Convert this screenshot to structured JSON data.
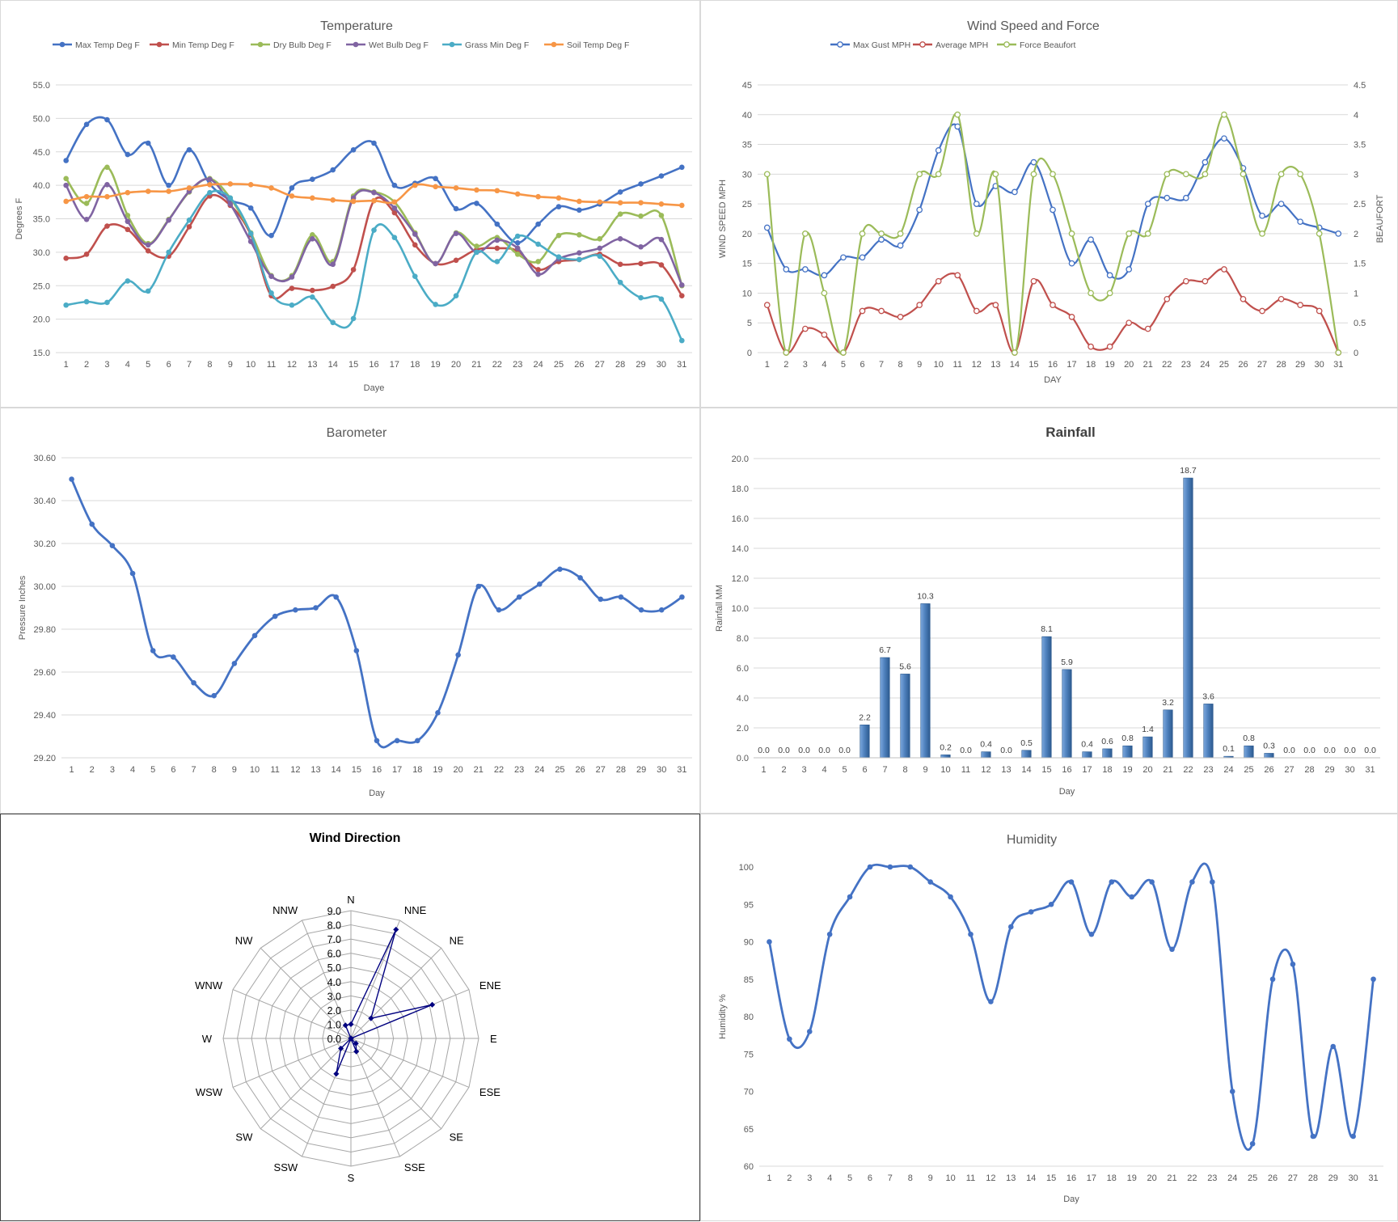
{
  "chart_data": [
    {
      "id": "temperature",
      "type": "line",
      "title": "Temperature",
      "xlabel": "Daye",
      "ylabel": "Degrees F",
      "ylim": [
        15.0,
        55.0
      ],
      "yticks": [
        "15.0",
        "20.0",
        "25.0",
        "30.0",
        "35.0",
        "40.0",
        "45.0",
        "50.0",
        "55.0"
      ],
      "x": [
        1,
        2,
        3,
        4,
        5,
        6,
        7,
        8,
        9,
        10,
        11,
        12,
        13,
        14,
        15,
        16,
        17,
        18,
        19,
        20,
        21,
        22,
        23,
        24,
        25,
        26,
        27,
        28,
        29,
        30,
        31
      ],
      "legend_position": "top",
      "grid": "horizontal",
      "series": [
        {
          "name": "Max Temp Deg F",
          "color": "#4472c4",
          "values": [
            43.7,
            49.1,
            49.8,
            44.6,
            46.3,
            40.0,
            45.3,
            40.2,
            37.8,
            36.6,
            32.5,
            39.6,
            40.9,
            42.3,
            45.3,
            46.3,
            40.0,
            40.3,
            41.0,
            36.5,
            37.3,
            34.2,
            31.4,
            34.2,
            36.8,
            36.3,
            37.2,
            39.0,
            40.2,
            41.4,
            42.7
          ]
        },
        {
          "name": "Min Temp Deg F",
          "color": "#c0504d",
          "values": [
            29.1,
            29.7,
            33.9,
            33.4,
            30.2,
            29.4,
            33.8,
            38.4,
            37.0,
            32.6,
            23.5,
            24.6,
            24.3,
            24.9,
            27.4,
            37.7,
            35.9,
            31.1,
            28.3,
            28.8,
            30.4,
            30.6,
            30.2,
            27.4,
            28.6,
            28.9,
            29.7,
            28.2,
            28.3,
            28.1,
            23.5
          ]
        },
        {
          "name": "Dry Bulb Deg F",
          "color": "#9bbb59",
          "values": [
            41.0,
            37.3,
            42.7,
            35.5,
            31.3,
            34.9,
            39.0,
            41.0,
            38.1,
            32.9,
            26.5,
            26.5,
            32.6,
            28.6,
            38.4,
            39.0,
            37.5,
            32.9,
            28.3,
            32.9,
            30.9,
            32.2,
            29.7,
            28.6,
            32.5,
            32.6,
            32.0,
            35.7,
            35.4,
            35.5,
            25.0
          ]
        },
        {
          "name": "Wet Bulb Deg F",
          "color": "#8064a2",
          "values": [
            40.0,
            34.9,
            40.1,
            34.6,
            31.1,
            34.8,
            39.1,
            40.9,
            37.2,
            31.6,
            26.4,
            26.3,
            32.0,
            28.2,
            38.1,
            38.9,
            36.6,
            32.7,
            28.3,
            32.8,
            30.0,
            31.8,
            30.6,
            26.7,
            29.0,
            29.9,
            30.6,
            32.0,
            30.8,
            31.9,
            25.1
          ]
        },
        {
          "name": "Grass Min Deg F",
          "color": "#4bacc6",
          "values": [
            22.1,
            22.6,
            22.5,
            25.7,
            24.2,
            30.0,
            34.8,
            38.9,
            38.1,
            32.8,
            23.9,
            22.1,
            23.3,
            19.5,
            20.1,
            33.3,
            32.2,
            26.4,
            22.2,
            23.5,
            30.0,
            28.6,
            32.4,
            31.2,
            29.3,
            28.9,
            29.4,
            25.5,
            23.2,
            23.0,
            16.8
          ]
        },
        {
          "name": "Soil Temp Deg F",
          "color": "#f79646",
          "values": [
            37.6,
            38.3,
            38.3,
            38.9,
            39.1,
            39.1,
            39.6,
            40.1,
            40.2,
            40.1,
            39.6,
            38.4,
            38.1,
            37.8,
            37.6,
            37.7,
            37.5,
            40.0,
            39.8,
            39.6,
            39.3,
            39.2,
            38.7,
            38.3,
            38.1,
            37.6,
            37.5,
            37.4,
            37.4,
            37.2,
            37.0
          ]
        }
      ]
    },
    {
      "id": "wind",
      "type": "line",
      "title": "Wind Speed and Force",
      "xlabel": "DAY",
      "ylabel": "WIND SPEED MPH",
      "ylabel_right": "BEAUFORT",
      "ylim": [
        0,
        45
      ],
      "ylim_right": [
        0,
        4.5
      ],
      "yticks": [
        "0",
        "5",
        "10",
        "15",
        "20",
        "25",
        "30",
        "35",
        "40",
        "45"
      ],
      "yticks_right": [
        "0",
        "0.5",
        "1",
        "1.5",
        "2",
        "2.5",
        "3",
        "3.5",
        "4",
        "4.5"
      ],
      "x": [
        1,
        2,
        3,
        4,
        5,
        6,
        7,
        8,
        9,
        10,
        11,
        12,
        13,
        14,
        15,
        16,
        17,
        18,
        19,
        20,
        21,
        22,
        23,
        24,
        25,
        26,
        27,
        28,
        29,
        30,
        31
      ],
      "legend_position": "top",
      "grid": "horizontal",
      "series": [
        {
          "name": "Max Gust MPH",
          "color": "#4472c4",
          "axis": "left",
          "values": [
            21,
            14,
            14,
            13,
            16,
            16,
            19,
            18,
            24,
            34,
            38,
            25,
            28,
            27,
            32,
            24,
            15,
            19,
            13,
            14,
            25,
            26,
            26,
            32,
            36,
            31,
            23,
            25,
            22,
            21,
            20
          ]
        },
        {
          "name": "Average MPH",
          "color": "#c0504d",
          "axis": "left",
          "values": [
            8,
            0,
            4,
            3,
            0,
            7,
            7,
            6,
            8,
            12,
            13,
            7,
            8,
            0,
            12,
            8,
            6,
            1,
            1,
            5,
            4,
            9,
            12,
            12,
            14,
            9,
            7,
            9,
            8,
            7,
            0
          ]
        },
        {
          "name": "Force Beaufort",
          "color": "#9bbb59",
          "axis": "right",
          "values": [
            3,
            0,
            2,
            1,
            0,
            2,
            2,
            2,
            3,
            3,
            4,
            2,
            3,
            0,
            3,
            3,
            2,
            1,
            1,
            2,
            2,
            3,
            3,
            3,
            4,
            3,
            2,
            3,
            3,
            2,
            0
          ]
        }
      ]
    },
    {
      "id": "barometer",
      "type": "line",
      "title": "Barometer",
      "xlabel": "Day",
      "ylabel": "Pressure Inches",
      "ylim": [
        29.2,
        30.6
      ],
      "yticks": [
        "29.20",
        "29.40",
        "29.60",
        "29.80",
        "30.00",
        "30.20",
        "30.40",
        "30.60"
      ],
      "x": [
        1,
        2,
        3,
        4,
        5,
        6,
        7,
        8,
        9,
        10,
        11,
        12,
        13,
        14,
        15,
        16,
        17,
        18,
        19,
        20,
        21,
        22,
        23,
        24,
        25,
        26,
        27,
        28,
        29,
        30,
        31
      ],
      "grid": "horizontal",
      "series": [
        {
          "name": "",
          "color": "#4472c4",
          "values": [
            30.5,
            30.29,
            30.19,
            30.06,
            29.7,
            29.67,
            29.55,
            29.49,
            29.64,
            29.77,
            29.86,
            29.89,
            29.9,
            29.95,
            29.7,
            29.28,
            29.28,
            29.28,
            29.41,
            29.68,
            30.0,
            29.89,
            29.95,
            30.01,
            30.08,
            30.04,
            29.94,
            29.95,
            29.89,
            29.89,
            29.95
          ]
        }
      ]
    },
    {
      "id": "rainfall",
      "type": "bar",
      "title": "Rainfall",
      "xlabel": "Day",
      "ylabel": "Rainfall MM",
      "ylim": [
        0,
        20
      ],
      "yticks": [
        "0.0",
        "2.0",
        "4.0",
        "6.0",
        "8.0",
        "10.0",
        "12.0",
        "14.0",
        "16.0",
        "18.0",
        "20.0"
      ],
      "categories": [
        "1",
        "2",
        "3",
        "4",
        "5",
        "6",
        "7",
        "8",
        "9",
        "10",
        "11",
        "12",
        "13",
        "14",
        "15",
        "16",
        "17",
        "18",
        "19",
        "20",
        "21",
        "22",
        "23",
        "24",
        "25",
        "26",
        "27",
        "28",
        "29",
        "30",
        "31"
      ],
      "values": [
        0.0,
        0.0,
        0.0,
        0.0,
        0.0,
        2.2,
        6.7,
        5.6,
        10.3,
        0.2,
        0.0,
        0.4,
        0.0,
        0.5,
        8.1,
        5.9,
        0.4,
        0.6,
        0.8,
        1.4,
        3.2,
        18.7,
        3.6,
        0.1,
        0.8,
        0.3,
        0.0,
        0.0,
        0.0,
        0.0,
        0.0
      ],
      "labels": [
        "0.0",
        "0.0",
        "0.0",
        "0.0",
        "0.0",
        "2.2",
        "6.7",
        "5.6",
        "10.3",
        "0.2",
        "0.0",
        "0.4",
        "0.0",
        "0.5",
        "8.1",
        "5.9",
        "0.4",
        "0.6",
        "0.8",
        "1.4",
        "3.2",
        "18.7",
        "3.6",
        "0.1",
        "0.8",
        "0.3",
        "0.0",
        "0.0",
        "0.0",
        "0.0",
        "0.0"
      ],
      "color": "#4f81bd",
      "grid": "horizontal"
    },
    {
      "id": "wind_direction",
      "type": "radar",
      "title": "Wind Direction",
      "categories": [
        "N",
        "NNE",
        "NE",
        "ENE",
        "E",
        "ESE",
        "SE",
        "SSE",
        "S",
        "SSW",
        "SW",
        "WSW",
        "W",
        "WNW",
        "NW",
        "NNW"
      ],
      "values": [
        1.0,
        8.3,
        2.0,
        6.2,
        0.0,
        0.0,
        0.5,
        1.0,
        0.0,
        2.7,
        1.0,
        0.0,
        0.0,
        0.0,
        0.0,
        1.0
      ],
      "rlim": [
        0,
        9
      ],
      "rticks": [
        "0.0",
        "1.0",
        "2.0",
        "3.0",
        "4.0",
        "5.0",
        "6.0",
        "7.0",
        "8.0",
        "9.0"
      ],
      "color": "#000080"
    },
    {
      "id": "humidity",
      "type": "line",
      "title": "Humidity",
      "xlabel": "Day",
      "ylabel": "Humidity %",
      "ylim": [
        60,
        100
      ],
      "yticks": [
        "60",
        "65",
        "70",
        "75",
        "80",
        "85",
        "90",
        "95",
        "100"
      ],
      "x": [
        1,
        2,
        3,
        4,
        5,
        6,
        7,
        8,
        9,
        10,
        11,
        12,
        13,
        14,
        15,
        16,
        17,
        18,
        19,
        20,
        21,
        22,
        23,
        24,
        25,
        26,
        27,
        28,
        29,
        30,
        31
      ],
      "grid": "none",
      "series": [
        {
          "name": "",
          "color": "#4472c4",
          "values": [
            90,
            77,
            78,
            91,
            96,
            100,
            100,
            100,
            98,
            96,
            91,
            82,
            92,
            94,
            95,
            98,
            91,
            98,
            96,
            98,
            89,
            98,
            98,
            70,
            63,
            85,
            87,
            64,
            76,
            64,
            85
          ]
        }
      ]
    }
  ]
}
